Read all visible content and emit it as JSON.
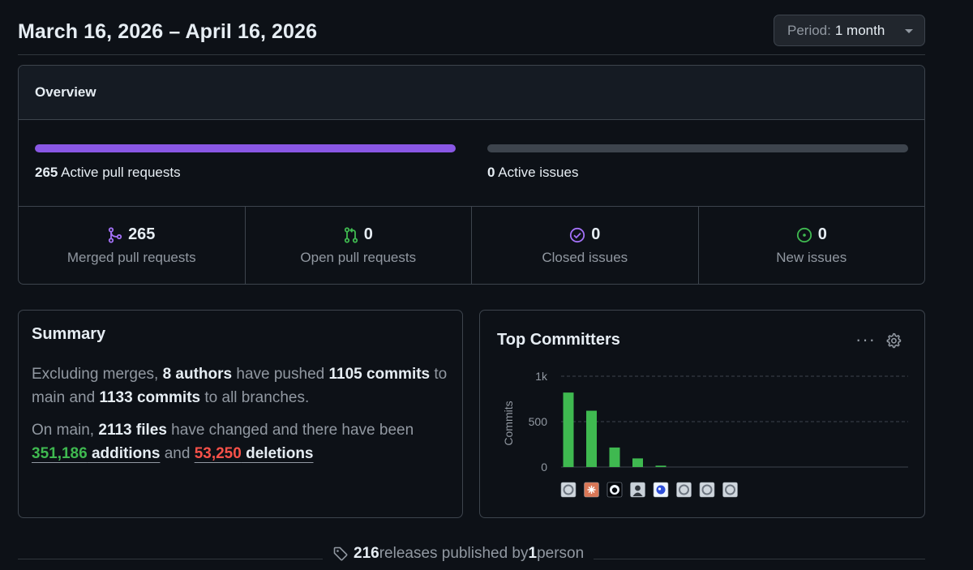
{
  "header": {
    "date_range": "March 16, 2026 – April 16, 2026",
    "period_label": "Period:",
    "period_value": "1 month"
  },
  "overview": {
    "title": "Overview",
    "pull_requests": {
      "count": "265",
      "label": "Active pull requests",
      "progress_fraction": 1.0
    },
    "issues": {
      "count": "0",
      "label": "Active issues",
      "progress_fraction": 0.0
    },
    "stats": [
      {
        "value": "265",
        "label": "Merged pull requests",
        "icon": "git-merge-icon",
        "color": "#a371f7"
      },
      {
        "value": "0",
        "label": "Open pull requests",
        "icon": "git-pull-request-icon",
        "color": "#3fb950"
      },
      {
        "value": "0",
        "label": "Closed issues",
        "icon": "issue-closed-icon",
        "color": "#a371f7"
      },
      {
        "value": "0",
        "label": "New issues",
        "icon": "issue-opened-icon",
        "color": "#3fb950"
      }
    ]
  },
  "summary": {
    "title": "Summary",
    "p1": {
      "t1": "Excluding merges, ",
      "authors": "8 authors",
      "t2": " have pushed ",
      "commits_main": "1105 commits",
      "t3": " to main and ",
      "commits_all": "1133 commits",
      "t4": " to all branches."
    },
    "p2": {
      "t1": "On main, ",
      "files": "2113 files",
      "t2": " have changed and there have been ",
      "additions_num": "351,186",
      "additions_word": " additions",
      "t3": " and ",
      "deletions_num": "53,250",
      "deletions_word": " deletions"
    }
  },
  "top_committers": {
    "title": "Top Committers",
    "menu_icon": "kebab-horizontal-icon",
    "settings_icon": "gear-icon"
  },
  "chart_data": {
    "type": "bar",
    "ylabel": "Commits",
    "ylim": [
      0,
      1000
    ],
    "yticks": [
      {
        "value": 0,
        "label": "0"
      },
      {
        "value": 500,
        "label": "500"
      },
      {
        "value": 1000,
        "label": "1k"
      }
    ],
    "grid": "dashed horizontal",
    "bar_color": "#3fb950",
    "values": [
      820,
      620,
      215,
      95,
      15,
      0,
      0,
      0
    ],
    "avatars": [
      {
        "name": "default-avatar",
        "color": "#6e7681"
      },
      {
        "name": "claude-avatar",
        "color": "#d97757"
      },
      {
        "name": "github-avatar",
        "color": "#f0f6fc"
      },
      {
        "name": "photo-avatar",
        "color": "#8b949e"
      },
      {
        "name": "blue-logo-avatar",
        "color": "#2f4fd8"
      },
      {
        "name": "default-avatar",
        "color": "#6e7681"
      },
      {
        "name": "default-avatar",
        "color": "#6e7681"
      },
      {
        "name": "default-avatar",
        "color": "#6e7681"
      }
    ]
  },
  "footer": {
    "icon": "tag-icon",
    "count": "216",
    "text1": " releases published by ",
    "people": "1",
    "text2": " person"
  }
}
